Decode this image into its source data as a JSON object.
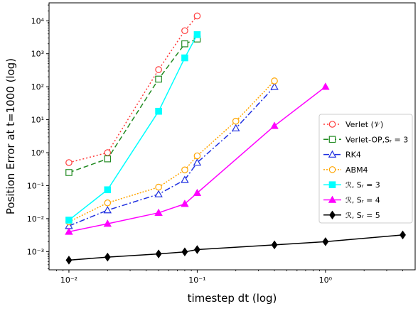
{
  "chart_data": {
    "type": "line",
    "xlabel": "timestep dt (log)",
    "ylabel": "Position Error at t=1000 (log)",
    "x_scale": "log",
    "y_scale": "log",
    "xlim": [
      0.007,
      5
    ],
    "ylim": [
      0.00028,
      35000
    ],
    "xticks": [
      0.01,
      0.1,
      1
    ],
    "xtick_labels": [
      "10⁻²",
      "10⁻¹",
      "10⁰"
    ],
    "yticks": [
      0.001,
      0.01,
      0.1,
      1,
      10,
      100,
      1000,
      10000
    ],
    "ytick_labels": [
      "10⁻³",
      "10⁻²",
      "10⁻¹",
      "10⁰",
      "10¹",
      "10²",
      "10³",
      "10⁴"
    ],
    "grid": false,
    "legend_position": "center-right",
    "series": [
      {
        "name": "Verlet (𝒱)",
        "color": "#ff3b3b",
        "dash": "2,3",
        "marker": "circle-open",
        "x": [
          0.01,
          0.02,
          0.05,
          0.08,
          0.1
        ],
        "y": [
          0.5,
          1.0,
          330,
          5000,
          14000
        ]
      },
      {
        "name": "Verlet-OP,Sᵣ = 3",
        "color": "#228b22",
        "dash": "7,4",
        "marker": "square-open",
        "x": [
          0.01,
          0.02,
          0.05,
          0.08,
          0.1
        ],
        "y": [
          0.25,
          0.65,
          170,
          2000,
          2800
        ]
      },
      {
        "name": "RK4",
        "color": "#1f2fe0",
        "dash": "8,3,2,3",
        "marker": "triangle-open",
        "x": [
          0.01,
          0.02,
          0.05,
          0.08,
          0.1,
          0.2,
          0.4
        ],
        "y": [
          0.006,
          0.018,
          0.055,
          0.15,
          0.5,
          5.5,
          100
        ]
      },
      {
        "name": "ABM4",
        "color": "#ffa500",
        "dash": "2,2",
        "marker": "circle-open",
        "x": [
          0.01,
          0.02,
          0.05,
          0.08,
          0.1,
          0.2,
          0.4
        ],
        "y": [
          0.008,
          0.03,
          0.09,
          0.3,
          0.8,
          9,
          150
        ]
      },
      {
        "name": "ℛ, Sᵣ = 3",
        "color": "#00ffff",
        "dash": "",
        "marker": "square-filled",
        "x": [
          0.01,
          0.02,
          0.05,
          0.08,
          0.1
        ],
        "y": [
          0.009,
          0.075,
          18,
          750,
          3800
        ]
      },
      {
        "name": "ℛ, Sᵣ = 4",
        "color": "#ff00ff",
        "dash": "",
        "marker": "triangle-filled",
        "x": [
          0.01,
          0.02,
          0.05,
          0.08,
          0.1,
          0.4,
          1.0
        ],
        "y": [
          0.004,
          0.007,
          0.015,
          0.028,
          0.06,
          6.5,
          100
        ]
      },
      {
        "name": "ℛ, Sᵣ = 5",
        "color": "#000000",
        "dash": "",
        "marker": "diamond-filled",
        "x": [
          0.01,
          0.02,
          0.05,
          0.08,
          0.1,
          0.4,
          1.0,
          4.0
        ],
        "y": [
          0.00055,
          0.00068,
          0.00085,
          0.00098,
          0.00115,
          0.0016,
          0.002,
          0.0032
        ]
      }
    ]
  }
}
